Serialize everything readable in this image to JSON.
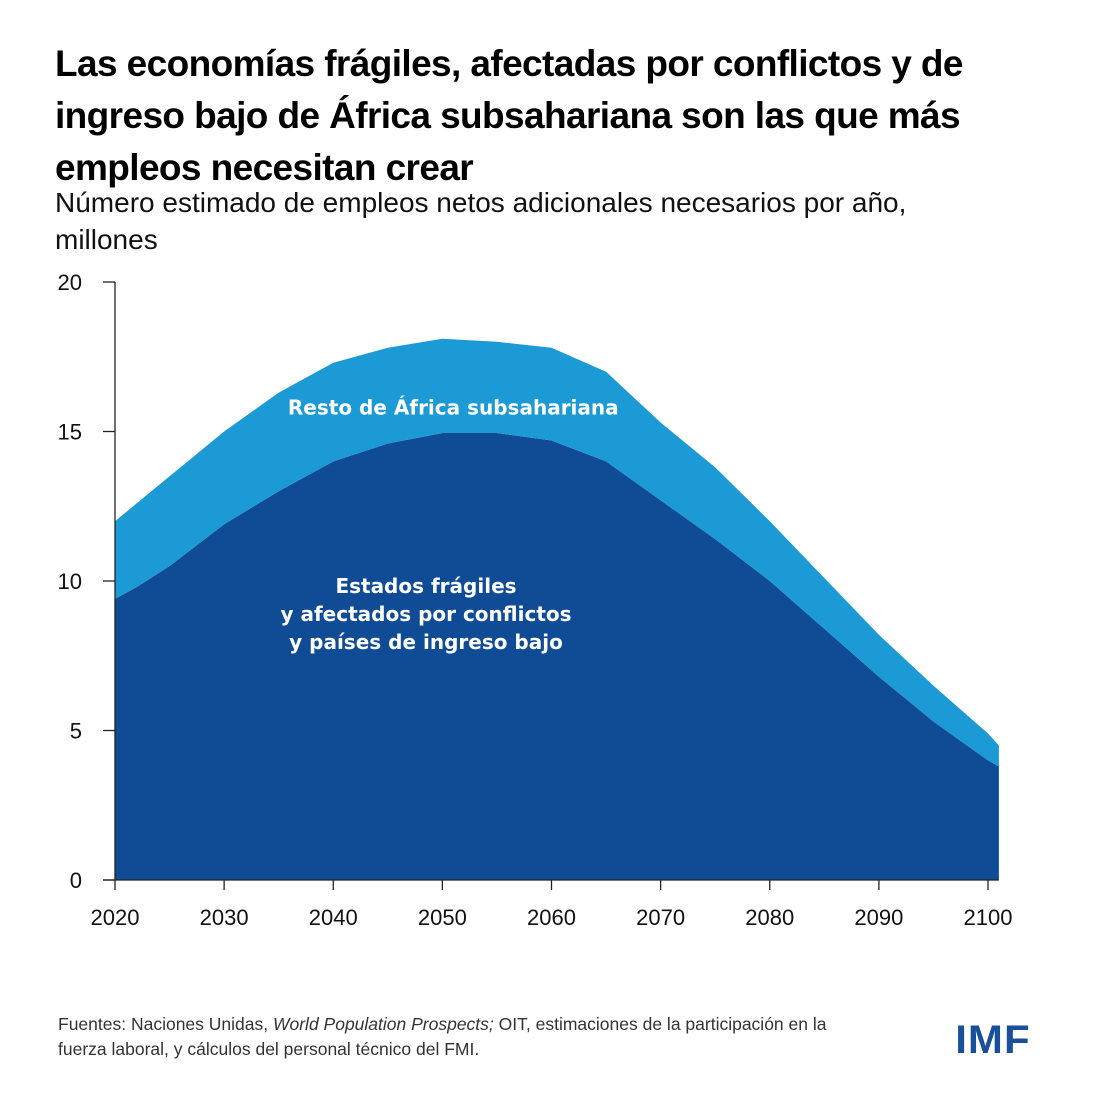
{
  "header": {
    "title": "Las economías frágiles, afectadas por conflictos y de ingreso bajo de África subsahariana son las que más empleos necesitan crear",
    "subtitle": "Número estimado de empleos netos adicionales necesarios por año, millones"
  },
  "footer": {
    "source_prefix": "Fuentes: Naciones Unidas, ",
    "source_italic": "World Population Prospects;",
    "source_suffix": " OIT, estimaciones de la participación en la fuerza laboral, y cálculos del personal técnico del FMI.",
    "logo": "IMF"
  },
  "colors": {
    "fragile": "#0f4c95",
    "rest": "#1c9ad6",
    "logo": "#1a4f9c"
  },
  "chart_data": {
    "type": "area",
    "stacked": true,
    "title": "Las economías frágiles, afectadas por conflictos y de ingreso bajo de África subsahariana son las que más empleos necesitan crear",
    "subtitle": "Número estimado de empleos netos adicionales necesarios por año, millones",
    "xlabel": "",
    "ylabel": "",
    "xlim": [
      2020,
      2101
    ],
    "ylim": [
      0,
      20
    ],
    "x_ticks": [
      2020,
      2030,
      2040,
      2050,
      2060,
      2070,
      2080,
      2090,
      2100
    ],
    "y_ticks": [
      0,
      5,
      10,
      15,
      20
    ],
    "grid": false,
    "legend": "inline labels",
    "x": [
      2020,
      2022,
      2025,
      2030,
      2035,
      2040,
      2045,
      2050,
      2055,
      2060,
      2065,
      2070,
      2075,
      2080,
      2085,
      2090,
      2095,
      2100,
      2101
    ],
    "series": [
      {
        "name": "Estados frágiles y afectados por conflictos y países de ingreso bajo",
        "label_lines": [
          "Estados frágiles",
          "y afectados por conflictos",
          "y países de ingreso bajo"
        ],
        "label_position": {
          "x": 2048.5,
          "y": 8.9
        },
        "color": "#0f4c95",
        "values": [
          9.4,
          9.8,
          10.5,
          11.9,
          13.0,
          14.0,
          14.6,
          14.95,
          14.95,
          14.7,
          14.0,
          12.7,
          11.4,
          10.0,
          8.4,
          6.8,
          5.3,
          4.0,
          3.8
        ]
      },
      {
        "name": "Resto de África subsahariana",
        "label_lines": [
          "Resto de África subsahariana"
        ],
        "label_position": {
          "x": 2051,
          "y": 15.8
        },
        "color": "#1c9ad6",
        "values": [
          2.6,
          2.8,
          3.0,
          3.1,
          3.3,
          3.3,
          3.2,
          3.15,
          3.05,
          3.1,
          3.0,
          2.6,
          2.4,
          2.0,
          1.7,
          1.4,
          1.2,
          0.9,
          0.7
        ]
      }
    ],
    "totals": [
      12.0,
      12.6,
      13.5,
      15.0,
      16.3,
      17.3,
      17.8,
      18.1,
      18.0,
      17.8,
      17.0,
      15.3,
      13.8,
      12.0,
      10.1,
      8.2,
      6.5,
      4.9,
      4.5
    ]
  }
}
